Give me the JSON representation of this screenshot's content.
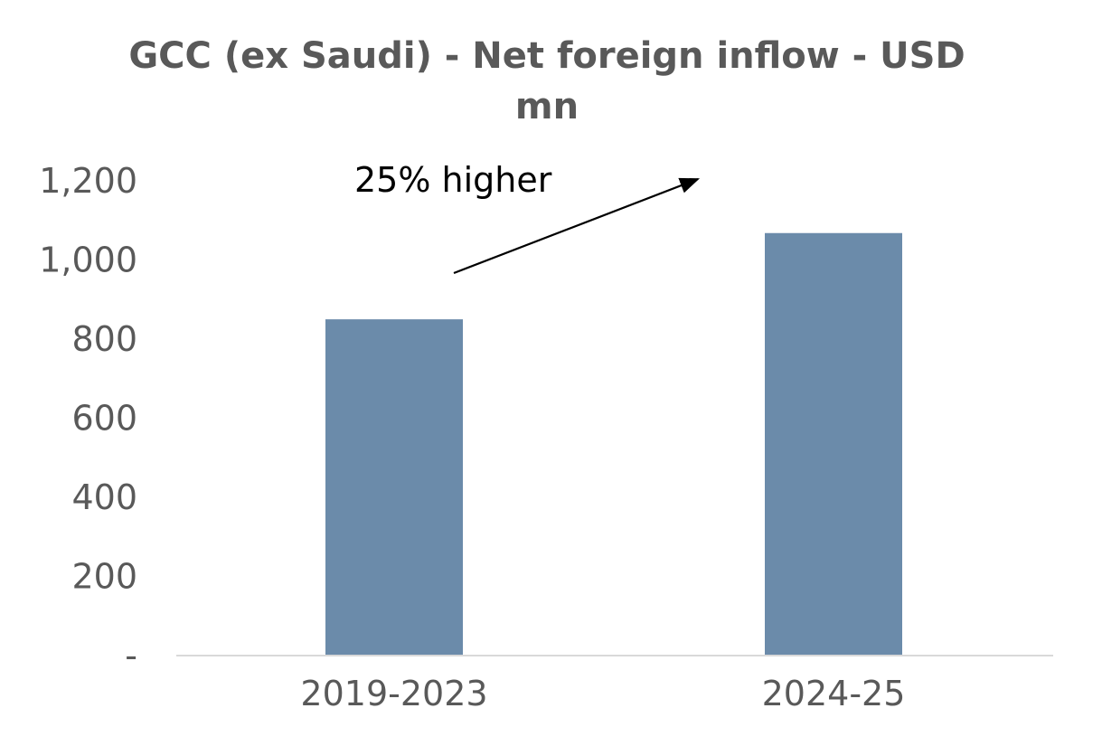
{
  "chart_data": {
    "type": "bar",
    "title": "GCC (ex Saudi) - Net foreign inflow - USD mn",
    "categories": [
      "2019-2023",
      "2024-25"
    ],
    "values": [
      850,
      1068
    ],
    "ylim": [
      0,
      1200
    ],
    "yticks": [
      0,
      200,
      400,
      600,
      800,
      1000,
      1200
    ],
    "ytick_labels": [
      "-",
      "200",
      "400",
      "600",
      "800",
      "1,000",
      "1,200"
    ],
    "bar_color": "#6b8baa",
    "grid": false,
    "legend": "none",
    "annotations": [
      {
        "text": "25% higher",
        "type": "arrow"
      }
    ]
  }
}
